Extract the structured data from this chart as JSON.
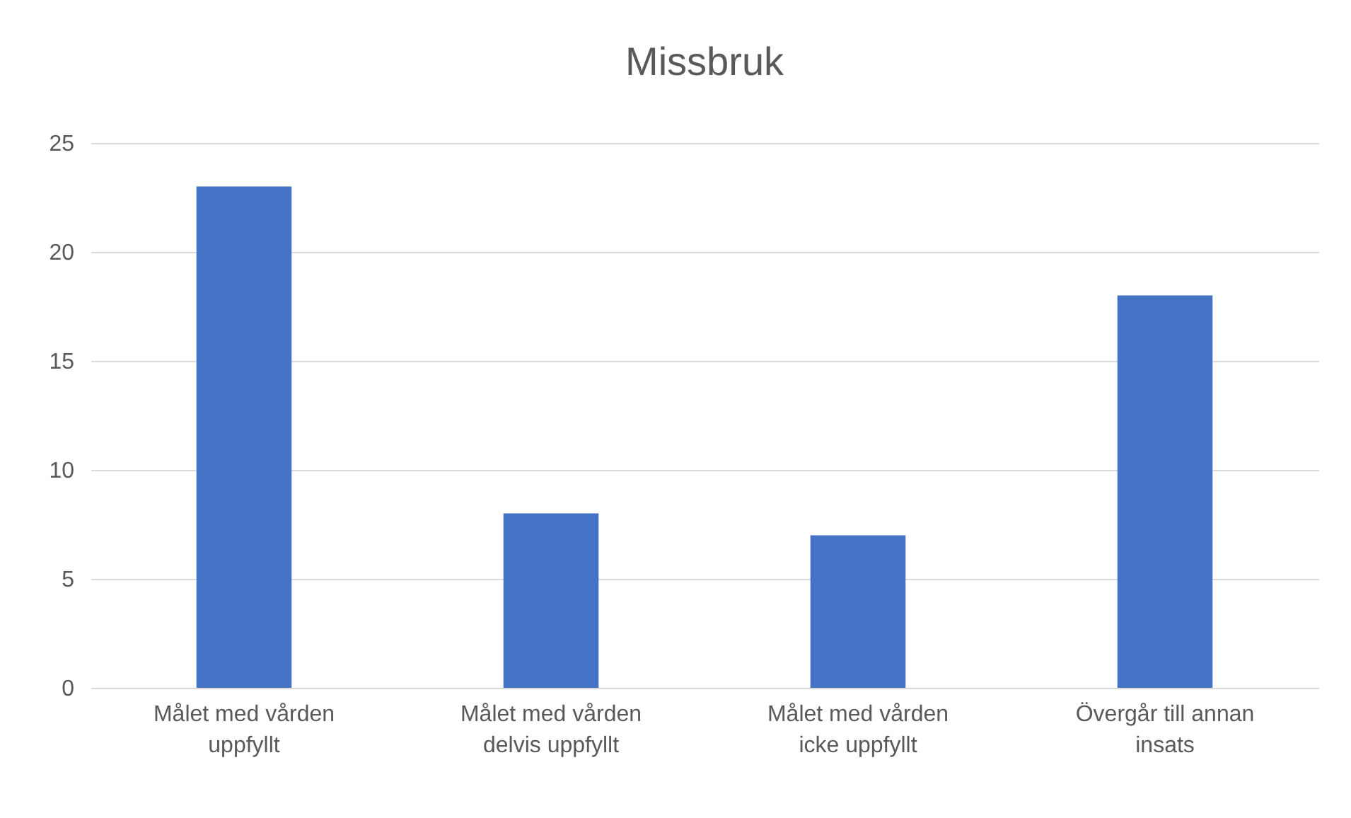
{
  "chart_data": {
    "type": "bar",
    "title": "Missbruk",
    "categories": [
      "Målet med vården uppfyllt",
      "Målet med vården delvis uppfyllt",
      "Målet med vården icke uppfyllt",
      "Övergår till annan insats"
    ],
    "values": [
      23,
      8,
      7,
      18
    ],
    "color": "#4472c4",
    "ylim": [
      0,
      25
    ],
    "yticks": [
      0,
      5,
      10,
      15,
      20,
      25
    ],
    "grid": "y",
    "legend": false
  }
}
